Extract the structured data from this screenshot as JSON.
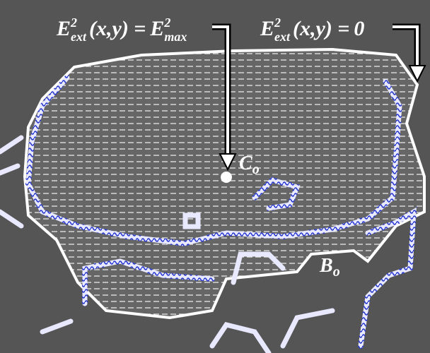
{
  "annotations": [
    {
      "symbol": "E",
      "superscript": "2",
      "subscript": "ext",
      "arguments": "(x,y) =",
      "rhs_symbol": "E",
      "rhs_superscript": "2",
      "rhs_subscript": "max"
    },
    {
      "symbol": "E",
      "superscript": "2",
      "subscript": "ext",
      "arguments": "(x,y) =",
      "rhs": "0"
    }
  ],
  "points": [
    {
      "symbol": "C",
      "subscript": "o"
    },
    {
      "symbol": "B",
      "subscript": "o"
    }
  ]
}
